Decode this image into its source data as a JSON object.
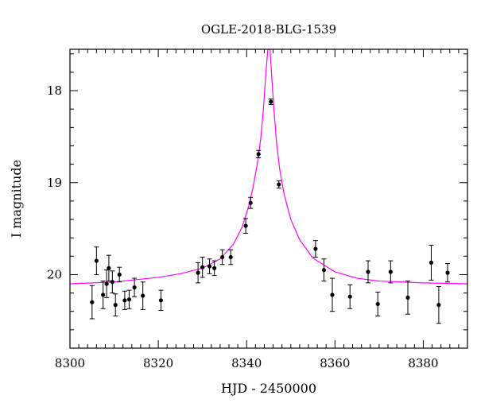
{
  "chart_data": {
    "type": "scatter",
    "title": "OGLE-2018-BLG-1539",
    "xlabel": "HJD - 2450000",
    "ylabel": "I magnitude",
    "xlim": [
      8300,
      8390
    ],
    "ylim": [
      20.8,
      17.55
    ],
    "y_inverted": true,
    "x_ticks": [
      8300,
      8320,
      8340,
      8360,
      8380
    ],
    "y_ticks": [
      18,
      19,
      20
    ],
    "grid": false,
    "colors": {
      "points": "#000000",
      "model": "#ff00ff"
    },
    "points": [
      {
        "x": 8305.0,
        "y": 20.3,
        "err": 0.18
      },
      {
        "x": 8306.0,
        "y": 19.85,
        "err": 0.15
      },
      {
        "x": 8307.5,
        "y": 20.22,
        "err": 0.15
      },
      {
        "x": 8308.3,
        "y": 20.1,
        "err": 0.15
      },
      {
        "x": 8308.8,
        "y": 19.93,
        "err": 0.14
      },
      {
        "x": 8309.6,
        "y": 20.08,
        "err": 0.12
      },
      {
        "x": 8310.3,
        "y": 20.33,
        "err": 0.12
      },
      {
        "x": 8311.2,
        "y": 20.0,
        "err": 0.08
      },
      {
        "x": 8312.4,
        "y": 20.28,
        "err": 0.1
      },
      {
        "x": 8313.4,
        "y": 20.27,
        "err": 0.1
      },
      {
        "x": 8314.6,
        "y": 20.14,
        "err": 0.1
      },
      {
        "x": 8316.5,
        "y": 20.23,
        "err": 0.15
      },
      {
        "x": 8320.6,
        "y": 20.28,
        "err": 0.11
      },
      {
        "x": 8329.0,
        "y": 19.98,
        "err": 0.11
      },
      {
        "x": 8330.0,
        "y": 19.92,
        "err": 0.11
      },
      {
        "x": 8331.6,
        "y": 19.91,
        "err": 0.08
      },
      {
        "x": 8332.7,
        "y": 19.93,
        "err": 0.08
      },
      {
        "x": 8334.5,
        "y": 19.81,
        "err": 0.08
      },
      {
        "x": 8336.4,
        "y": 19.81,
        "err": 0.08
      },
      {
        "x": 8339.8,
        "y": 19.47,
        "err": 0.08
      },
      {
        "x": 8340.9,
        "y": 19.22,
        "err": 0.06
      },
      {
        "x": 8342.7,
        "y": 18.69,
        "err": 0.04
      },
      {
        "x": 8345.5,
        "y": 18.12,
        "err": 0.03
      },
      {
        "x": 8347.3,
        "y": 19.02,
        "err": 0.04
      },
      {
        "x": 8355.6,
        "y": 19.72,
        "err": 0.09
      },
      {
        "x": 8357.5,
        "y": 19.95,
        "err": 0.12
      },
      {
        "x": 8359.4,
        "y": 20.22,
        "err": 0.18
      },
      {
        "x": 8363.4,
        "y": 20.24,
        "err": 0.13
      },
      {
        "x": 8367.5,
        "y": 19.97,
        "err": 0.12
      },
      {
        "x": 8369.7,
        "y": 20.32,
        "err": 0.13
      },
      {
        "x": 8372.6,
        "y": 19.97,
        "err": 0.12
      },
      {
        "x": 8376.5,
        "y": 20.25,
        "err": 0.18
      },
      {
        "x": 8381.8,
        "y": 19.87,
        "err": 0.19
      },
      {
        "x": 8383.5,
        "y": 20.33,
        "err": 0.2
      },
      {
        "x": 8385.5,
        "y": 19.98,
        "err": 0.1
      }
    ],
    "model": {
      "type": "line",
      "samples": [
        [
          8300.0,
          20.1
        ],
        [
          8310.0,
          20.08
        ],
        [
          8320.0,
          20.03
        ],
        [
          8325.0,
          19.99
        ],
        [
          8330.0,
          19.93
        ],
        [
          8334.0,
          19.83
        ],
        [
          8337.0,
          19.67
        ],
        [
          8339.0,
          19.48
        ],
        [
          8340.5,
          19.25
        ],
        [
          8341.5,
          19.04
        ],
        [
          8342.5,
          18.77
        ],
        [
          8343.2,
          18.52
        ],
        [
          8343.8,
          18.2
        ],
        [
          8344.3,
          17.85
        ],
        [
          8344.8,
          17.55
        ],
        [
          8345.3,
          17.55
        ],
        [
          8345.7,
          17.86
        ],
        [
          8346.2,
          18.22
        ],
        [
          8346.8,
          18.58
        ],
        [
          8347.5,
          18.86
        ],
        [
          8348.5,
          19.13
        ],
        [
          8350.0,
          19.4
        ],
        [
          8352.0,
          19.62
        ],
        [
          8355.0,
          19.82
        ],
        [
          8360.0,
          19.97
        ],
        [
          8365.0,
          20.04
        ],
        [
          8370.0,
          20.07
        ],
        [
          8380.0,
          20.09
        ],
        [
          8390.0,
          20.1
        ]
      ]
    }
  }
}
